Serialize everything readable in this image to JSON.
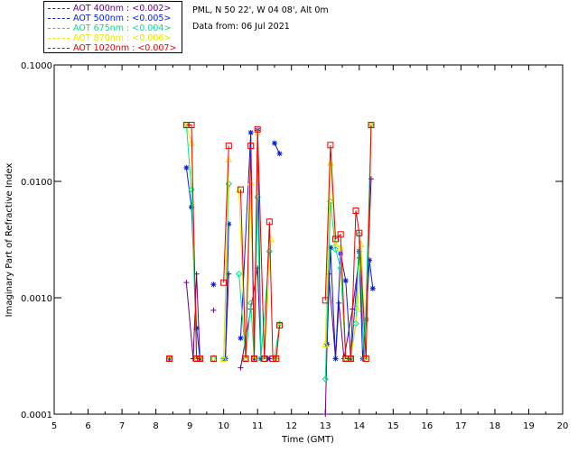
{
  "info": {
    "site": "PML, N 50 22', W 04 08', Alt 0m",
    "date": "Data from: 06 Jul 2021"
  },
  "legend": [
    {
      "label": "AOT  400nm : <0.002>",
      "color": "#6a008a"
    },
    {
      "label": "AOT  500nm : <0.005>",
      "color": "#0a1cd8"
    },
    {
      "label": "AOT  675nm : <0.004>",
      "color": "#00e090"
    },
    {
      "label": "AOT  870nm : <0.006>",
      "color": "#e8e800"
    },
    {
      "label": "AOT 1020nm : <0.007>",
      "color": "#e80000"
    }
  ],
  "chart_data": {
    "type": "line",
    "title": "",
    "xlabel": "Time (GMT)",
    "ylabel": "Imaginary Part of Refractive Index",
    "xlim": [
      5,
      20
    ],
    "ylim": [
      0.0001,
      0.1
    ],
    "y_scale": "log",
    "x_ticks": [
      "5",
      "6",
      "7",
      "8",
      "9",
      "10",
      "11",
      "12",
      "13",
      "14",
      "15",
      "16",
      "17",
      "18",
      "19",
      "20"
    ],
    "y_ticks": [
      "0.0001",
      "0.0010",
      "0.0100",
      "0.1000"
    ],
    "legend_position": "top-left, outside plot",
    "series": [
      {
        "name": "AOT  400nm : <0.002>",
        "marker": "plus",
        "color": "#6a008a",
        "segments": [
          {
            "x": [
              8.4
            ],
            "y": [
              0.0003
            ]
          },
          {
            "x": [
              8.9,
              9.1,
              9.2,
              9.3
            ],
            "y": [
              0.00135,
              0.0003,
              0.0016,
              0.0003
            ]
          },
          {
            "x": [
              9.7
            ],
            "y": [
              0.00078
            ]
          },
          {
            "x": [
              10.05,
              10.15
            ],
            "y": [
              0.0003,
              0.0016
            ]
          },
          {
            "x": [
              10.5,
              10.8,
              11.0,
              11.1
            ],
            "y": [
              0.00025,
              0.0008,
              0.0018,
              0.0003
            ]
          },
          {
            "x": [
              11.35
            ],
            "y": [
              0.0003
            ]
          },
          {
            "x": [
              11.55,
              11.65
            ],
            "y": [
              0.0003,
              0.0006
            ]
          },
          {
            "x": [
              13.0,
              13.1,
              13.3,
              13.4,
              13.55,
              13.8,
              14.0,
              14.15,
              14.35
            ],
            "y": [
              0.0001,
              0.0016,
              0.0003,
              0.0009,
              0.0003,
              0.0008,
              0.0022,
              0.0003,
              0.0105
            ]
          }
        ]
      },
      {
        "name": "AOT  500nm : <0.005>",
        "marker": "asterisk",
        "color": "#0a1cd8",
        "segments": [
          {
            "x": [
              8.4
            ],
            "y": [
              0.0003
            ]
          },
          {
            "x": [
              8.9,
              9.05,
              9.2,
              9.3
            ],
            "y": [
              0.0131,
              0.006,
              0.00055,
              0.0003
            ]
          },
          {
            "x": [
              9.7
            ],
            "y": [
              0.0013
            ]
          },
          {
            "x": [
              10.05,
              10.15
            ],
            "y": [
              0.0003,
              0.0043
            ]
          },
          {
            "x": [
              10.5,
              10.8,
              10.9,
              11.0,
              11.1,
              11.3
            ],
            "y": [
              0.00045,
              0.0262,
              0.0003,
              0.0275,
              0.0003,
              0.0003
            ]
          },
          {
            "x": [
              11.5,
              11.65
            ],
            "y": [
              0.0213,
              0.0173
            ]
          },
          {
            "x": [
              13.05,
              13.15,
              13.3,
              13.45,
              13.6,
              13.75,
              14.0,
              14.1,
              14.2,
              14.3,
              14.4
            ],
            "y": [
              0.0004,
              0.0027,
              0.0003,
              0.0024,
              0.0014,
              0.0003,
              0.0025,
              0.0003,
              0.00065,
              0.0021,
              0.0012
            ]
          }
        ]
      },
      {
        "name": "AOT  675nm : <0.004>",
        "marker": "diamond",
        "color": "#00e090",
        "segments": [
          {
            "x": [
              8.4
            ],
            "y": [
              0.0003
            ]
          },
          {
            "x": [
              8.9,
              9.05,
              9.2,
              9.3
            ],
            "y": [
              0.0305,
              0.0085,
              0.0003,
              0.0003
            ]
          },
          {
            "x": [
              9.7
            ],
            "y": [
              0.0003
            ]
          },
          {
            "x": [
              10.0,
              10.15
            ],
            "y": [
              0.0003,
              0.0095
            ]
          },
          {
            "x": [
              10.45,
              10.65,
              10.8,
              10.9,
              11.0,
              11.1,
              11.35
            ],
            "y": [
              0.0016,
              0.0003,
              0.0009,
              0.0003,
              0.0073,
              0.0003,
              0.0025
            ]
          },
          {
            "x": [
              11.5,
              11.65
            ],
            "y": [
              0.0003,
              0.0006
            ]
          },
          {
            "x": [
              13.0,
              13.15,
              13.3,
              13.45,
              13.6,
              13.75,
              13.9,
              14.0,
              14.15,
              14.35
            ],
            "y": [
              0.0002,
              0.0067,
              0.0026,
              0.0018,
              0.0003,
              0.0003,
              0.0006,
              0.0035,
              0.0003,
              0.0305
            ]
          }
        ]
      },
      {
        "name": "AOT  870nm : <0.006>",
        "marker": "triangle",
        "color": "#e8e800",
        "segments": [
          {
            "x": [
              8.4
            ],
            "y": [
              0.0003
            ]
          },
          {
            "x": [
              8.9,
              9.05,
              9.2,
              9.3
            ],
            "y": [
              0.0305,
              0.0215,
              0.0003,
              0.0003
            ]
          },
          {
            "x": [
              9.7
            ],
            "y": [
              0.0003
            ]
          },
          {
            "x": [
              10.0,
              10.15
            ],
            "y": [
              0.0003,
              0.0155
            ]
          },
          {
            "x": [
              10.45,
              10.65,
              10.8,
              10.9,
              11.0,
              11.2,
              11.4
            ],
            "y": [
              0.0085,
              0.0003,
              0.0098,
              0.0003,
              0.0265,
              0.0003,
              0.0032
            ]
          },
          {
            "x": [
              11.55,
              11.65
            ],
            "y": [
              0.0003,
              0.0006
            ]
          },
          {
            "x": [
              13.0,
              13.15,
              13.3,
              13.45,
              13.6,
              13.75,
              13.95,
              14.05,
              14.2,
              14.35
            ],
            "y": [
              0.0004,
              0.0145,
              0.0029,
              0.0027,
              0.0003,
              0.0003,
              0.0008,
              0.0029,
              0.0003,
              0.0305
            ]
          }
        ]
      },
      {
        "name": "AOT 1020nm : <0.007>",
        "marker": "square",
        "color": "#e80000",
        "segments": [
          {
            "x": [
              8.4
            ],
            "y": [
              0.0003
            ]
          },
          {
            "x": [
              8.9,
              9.05,
              9.2,
              9.3
            ],
            "y": [
              0.0305,
              0.0305,
              0.0003,
              0.0003
            ]
          },
          {
            "x": [
              9.7
            ],
            "y": [
              0.0003
            ]
          },
          {
            "x": [
              10.0,
              10.15
            ],
            "y": [
              0.00135,
              0.0202
            ]
          },
          {
            "x": [
              10.5,
              10.65,
              10.8,
              10.9,
              11.0,
              11.2,
              11.35,
              11.45
            ],
            "y": [
              0.0085,
              0.0003,
              0.0202,
              0.0003,
              0.028,
              0.0003,
              0.0045,
              0.0003
            ]
          },
          {
            "x": [
              11.55,
              11.65
            ],
            "y": [
              0.0003,
              0.00058
            ]
          },
          {
            "x": [
              13.0,
              13.15,
              13.3,
              13.45,
              13.6,
              13.75,
              13.9,
              14.0,
              14.2,
              14.35
            ],
            "y": [
              0.00095,
              0.0205,
              0.0032,
              0.0035,
              0.0003,
              0.0003,
              0.0056,
              0.0036,
              0.0003,
              0.0305
            ]
          }
        ]
      }
    ]
  }
}
